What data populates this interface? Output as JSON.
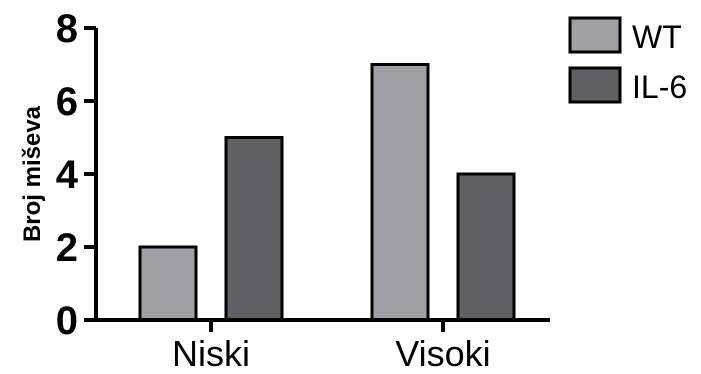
{
  "chart_data": {
    "type": "bar",
    "categories": [
      "Niski",
      "Visoki"
    ],
    "series": [
      {
        "name": "WT",
        "values": [
          2,
          7
        ],
        "color": "#a0a0a4"
      },
      {
        "name": "IL-6",
        "values": [
          5,
          4
        ],
        "color": "#606062"
      }
    ],
    "title": "",
    "xlabel": "",
    "ylabel": "Broj miševa",
    "ylim": [
      0,
      8
    ],
    "yticks": [
      0,
      2,
      4,
      6,
      8
    ],
    "grid": false,
    "legend_position": "top-right"
  }
}
